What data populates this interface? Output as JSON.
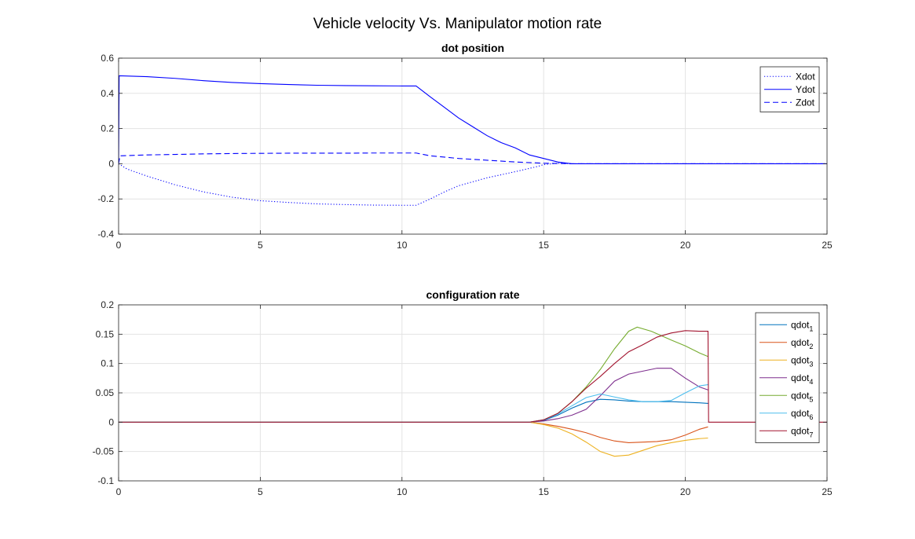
{
  "figure": {
    "title": "Vehicle velocity Vs. Manipulator motion rate"
  },
  "chart_data": [
    {
      "type": "line",
      "title": "dot position",
      "xlabel": "",
      "ylabel": "",
      "xlim": [
        0,
        25
      ],
      "ylim": [
        -0.4,
        0.6
      ],
      "xticks": [
        0,
        5,
        10,
        15,
        20,
        25
      ],
      "yticks": [
        -0.4,
        -0.2,
        0,
        0.2,
        0.4,
        0.6
      ],
      "grid": true,
      "legend_position": "top-right",
      "series": [
        {
          "name": "Xdot",
          "color": "#0000ff",
          "dash": "dotted",
          "points": [
            [
              0,
              0
            ],
            [
              0.3,
              -0.03
            ],
            [
              1,
              -0.07
            ],
            [
              2,
              -0.12
            ],
            [
              3,
              -0.16
            ],
            [
              4,
              -0.19
            ],
            [
              5,
              -0.21
            ],
            [
              6,
              -0.22
            ],
            [
              7,
              -0.228
            ],
            [
              8,
              -0.232
            ],
            [
              9,
              -0.235
            ],
            [
              10,
              -0.236
            ],
            [
              10.5,
              -0.236
            ],
            [
              11,
              -0.2
            ],
            [
              11.5,
              -0.16
            ],
            [
              12,
              -0.125
            ],
            [
              13,
              -0.08
            ],
            [
              14,
              -0.045
            ],
            [
              14.8,
              -0.015
            ],
            [
              15,
              -0.005
            ],
            [
              15.5,
              0.003
            ],
            [
              16,
              0
            ],
            [
              17,
              0
            ],
            [
              25,
              0
            ]
          ]
        },
        {
          "name": "Ydot",
          "color": "#0000ff",
          "dash": "solid",
          "points": [
            [
              0,
              0
            ],
            [
              0.02,
              0.5
            ],
            [
              1,
              0.495
            ],
            [
              2,
              0.485
            ],
            [
              3,
              0.472
            ],
            [
              4,
              0.462
            ],
            [
              5,
              0.455
            ],
            [
              6,
              0.45
            ],
            [
              7,
              0.446
            ],
            [
              8,
              0.444
            ],
            [
              9,
              0.443
            ],
            [
              10,
              0.442
            ],
            [
              10.5,
              0.442
            ],
            [
              11,
              0.38
            ],
            [
              11.5,
              0.32
            ],
            [
              12,
              0.26
            ],
            [
              12.5,
              0.21
            ],
            [
              13,
              0.16
            ],
            [
              13.5,
              0.12
            ],
            [
              14,
              0.09
            ],
            [
              14.5,
              0.05
            ],
            [
              15,
              0.03
            ],
            [
              15.5,
              0.01
            ],
            [
              16,
              0
            ],
            [
              17,
              0
            ],
            [
              25,
              0
            ]
          ]
        },
        {
          "name": "Zdot",
          "color": "#0000ff",
          "dash": "dashed",
          "points": [
            [
              0,
              0
            ],
            [
              0.05,
              0.045
            ],
            [
              1,
              0.05
            ],
            [
              2,
              0.053
            ],
            [
              3,
              0.056
            ],
            [
              4,
              0.058
            ],
            [
              5,
              0.059
            ],
            [
              6,
              0.06
            ],
            [
              7,
              0.06
            ],
            [
              8,
              0.06
            ],
            [
              9,
              0.061
            ],
            [
              10,
              0.061
            ],
            [
              10.5,
              0.061
            ],
            [
              11,
              0.045
            ],
            [
              12,
              0.03
            ],
            [
              13,
              0.02
            ],
            [
              14,
              0.01
            ],
            [
              15,
              0.003
            ],
            [
              16,
              0
            ],
            [
              17,
              0
            ],
            [
              25,
              0
            ]
          ]
        }
      ]
    },
    {
      "type": "line",
      "title": "configuration rate",
      "xlabel": "",
      "ylabel": "",
      "xlim": [
        0,
        25
      ],
      "ylim": [
        -0.1,
        0.2
      ],
      "xticks": [
        0,
        5,
        10,
        15,
        20,
        25
      ],
      "yticks": [
        -0.1,
        -0.05,
        0,
        0.05,
        0.1,
        0.15,
        0.2
      ],
      "grid": true,
      "legend_position": "top-right",
      "series": [
        {
          "name": "qdot",
          "sub": "1",
          "color": "#0072bd",
          "points": [
            [
              0,
              0
            ],
            [
              14.5,
              0
            ],
            [
              15,
              0.003
            ],
            [
              15.5,
              0.012
            ],
            [
              16,
              0.024
            ],
            [
              16.5,
              0.034
            ],
            [
              17,
              0.039
            ],
            [
              17.5,
              0.038
            ],
            [
              18,
              0.036
            ],
            [
              18.5,
              0.035
            ],
            [
              19,
              0.035
            ],
            [
              19.5,
              0.035
            ],
            [
              20,
              0.034
            ],
            [
              20.5,
              0.033
            ],
            [
              20.8,
              0.032
            ]
          ]
        },
        {
          "name": "qdot",
          "sub": "2",
          "color": "#d95319",
          "points": [
            [
              0,
              0
            ],
            [
              14.5,
              0
            ],
            [
              15,
              -0.003
            ],
            [
              15.5,
              -0.007
            ],
            [
              16,
              -0.012
            ],
            [
              16.5,
              -0.018
            ],
            [
              17,
              -0.026
            ],
            [
              17.5,
              -0.032
            ],
            [
              18,
              -0.035
            ],
            [
              18.5,
              -0.034
            ],
            [
              19,
              -0.033
            ],
            [
              19.5,
              -0.03
            ],
            [
              20,
              -0.022
            ],
            [
              20.5,
              -0.012
            ],
            [
              20.8,
              -0.008
            ]
          ]
        },
        {
          "name": "qdot",
          "sub": "3",
          "color": "#edb120",
          "points": [
            [
              0,
              0
            ],
            [
              14.5,
              0
            ],
            [
              15,
              -0.004
            ],
            [
              15.5,
              -0.01
            ],
            [
              16,
              -0.02
            ],
            [
              16.5,
              -0.034
            ],
            [
              17,
              -0.05
            ],
            [
              17.5,
              -0.058
            ],
            [
              18,
              -0.056
            ],
            [
              18.5,
              -0.048
            ],
            [
              19,
              -0.04
            ],
            [
              19.5,
              -0.035
            ],
            [
              20,
              -0.031
            ],
            [
              20.5,
              -0.028
            ],
            [
              20.8,
              -0.027
            ]
          ]
        },
        {
          "name": "qdot",
          "sub": "4",
          "color": "#7e2f8e",
          "points": [
            [
              0,
              0
            ],
            [
              14.5,
              0
            ],
            [
              15,
              0.002
            ],
            [
              15.5,
              0.006
            ],
            [
              16,
              0.012
            ],
            [
              16.5,
              0.022
            ],
            [
              17,
              0.045
            ],
            [
              17.5,
              0.07
            ],
            [
              18,
              0.082
            ],
            [
              18.5,
              0.087
            ],
            [
              19,
              0.092
            ],
            [
              19.5,
              0.092
            ],
            [
              20,
              0.075
            ],
            [
              20.5,
              0.06
            ],
            [
              20.8,
              0.055
            ]
          ]
        },
        {
          "name": "qdot",
          "sub": "5",
          "color": "#77ac30",
          "points": [
            [
              0,
              0
            ],
            [
              14.5,
              0
            ],
            [
              15,
              0.004
            ],
            [
              15.5,
              0.015
            ],
            [
              16,
              0.035
            ],
            [
              16.5,
              0.06
            ],
            [
              17,
              0.09
            ],
            [
              17.5,
              0.125
            ],
            [
              18,
              0.155
            ],
            [
              18.3,
              0.162
            ],
            [
              18.8,
              0.155
            ],
            [
              19.5,
              0.14
            ],
            [
              20,
              0.13
            ],
            [
              20.5,
              0.118
            ],
            [
              20.8,
              0.112
            ]
          ]
        },
        {
          "name": "qdot",
          "sub": "6",
          "color": "#4dbeee",
          "points": [
            [
              0,
              0
            ],
            [
              14.5,
              0
            ],
            [
              15,
              0.004
            ],
            [
              15.5,
              0.014
            ],
            [
              16,
              0.028
            ],
            [
              16.5,
              0.042
            ],
            [
              17,
              0.048
            ],
            [
              17.5,
              0.043
            ],
            [
              18,
              0.038
            ],
            [
              18.5,
              0.035
            ],
            [
              19,
              0.035
            ],
            [
              19.5,
              0.037
            ],
            [
              20,
              0.05
            ],
            [
              20.5,
              0.062
            ],
            [
              20.8,
              0.064
            ]
          ]
        },
        {
          "name": "qdot",
          "sub": "7",
          "color": "#a2142f",
          "points": [
            [
              0,
              0
            ],
            [
              14.5,
              0
            ],
            [
              15,
              0.004
            ],
            [
              15.5,
              0.015
            ],
            [
              16,
              0.035
            ],
            [
              16.5,
              0.058
            ],
            [
              17,
              0.078
            ],
            [
              17.5,
              0.1
            ],
            [
              18,
              0.12
            ],
            [
              18.5,
              0.132
            ],
            [
              19,
              0.145
            ],
            [
              19.5,
              0.152
            ],
            [
              20,
              0.156
            ],
            [
              20.5,
              0.155
            ],
            [
              20.8,
              0.155
            ],
            [
              20.82,
              0
            ],
            [
              25,
              0
            ]
          ]
        }
      ]
    }
  ]
}
